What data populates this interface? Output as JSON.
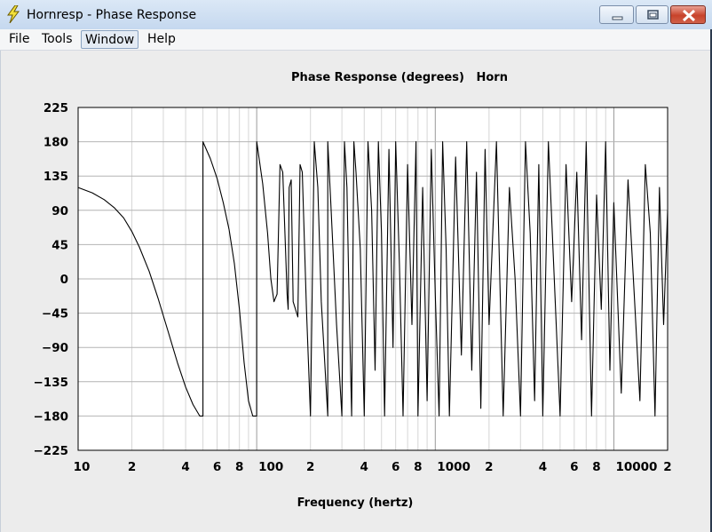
{
  "window": {
    "title": "Hornresp - Phase Response",
    "icon": "lightning-bolt-icon"
  },
  "window_controls": {
    "minimize_icon": "minimize-icon",
    "maximize_icon": "maximize-icon",
    "close_icon": "close-icon"
  },
  "menu": {
    "items": [
      {
        "label": "File"
      },
      {
        "label": "Tools"
      },
      {
        "label": "Window",
        "active": true
      },
      {
        "label": "Help"
      }
    ]
  },
  "chart_data": {
    "type": "line",
    "title": "Phase Response (degrees)   Horn",
    "xlabel": "Frequency (hertz)",
    "ylabel": "",
    "xscale": "log",
    "xlim": [
      10,
      20000
    ],
    "ylim": [
      -225,
      225
    ],
    "grid": true,
    "y_ticks": [
      "225",
      "180",
      "135",
      "90",
      "45",
      "0",
      "−45",
      "−90",
      "−135",
      "−180",
      "−225"
    ],
    "x_tick_labels": [
      {
        "f": 10,
        "label": "10"
      },
      {
        "f": 20,
        "label": "2"
      },
      {
        "f": 40,
        "label": "4"
      },
      {
        "f": 60,
        "label": "6"
      },
      {
        "f": 80,
        "label": "8"
      },
      {
        "f": 100,
        "label": "100"
      },
      {
        "f": 200,
        "label": "2"
      },
      {
        "f": 400,
        "label": "4"
      },
      {
        "f": 600,
        "label": "6"
      },
      {
        "f": 800,
        "label": "8"
      },
      {
        "f": 1000,
        "label": "1000"
      },
      {
        "f": 2000,
        "label": "2"
      },
      {
        "f": 4000,
        "label": "4"
      },
      {
        "f": 6000,
        "label": "6"
      },
      {
        "f": 8000,
        "label": "8"
      },
      {
        "f": 10000,
        "label": "10000"
      },
      {
        "f": 20000,
        "label": "2"
      }
    ],
    "series": [
      {
        "x": [
          10,
          12,
          14,
          16,
          18,
          20,
          22,
          25,
          28,
          32,
          36,
          40,
          44,
          48,
          50,
          50.01,
          55,
          60,
          65,
          70,
          75,
          80,
          85,
          90,
          95,
          100,
          100.01,
          108,
          115,
          120,
          125,
          130,
          135,
          140,
          148,
          150,
          152,
          156,
          160,
          170,
          175,
          180,
          190,
          200,
          210,
          220,
          230,
          250,
          250.01,
          260,
          280,
          300,
          310,
          320,
          330,
          340,
          350,
          360,
          380,
          400,
          420,
          440,
          460,
          480,
          500,
          520,
          550,
          580,
          600,
          630,
          660,
          700,
          740,
          780,
          800,
          850,
          900,
          950,
          1000,
          1050,
          1100,
          1150,
          1200,
          1300,
          1400,
          1500,
          1600,
          1700,
          1800,
          1900,
          2000,
          2200,
          2400,
          2600,
          2800,
          3000,
          3200,
          3400,
          3600,
          3800,
          4000,
          4300,
          4600,
          5000,
          5400,
          5800,
          6200,
          6600,
          7000,
          7500,
          8000,
          8500,
          9000,
          9500,
          10000,
          11000,
          12000,
          13000,
          14000,
          15000,
          16000,
          17000,
          18000,
          19000,
          20000
        ],
        "y": [
          120,
          113,
          104,
          93,
          80,
          62,
          42,
          10,
          -25,
          -70,
          -110,
          -142,
          -165,
          -180,
          -180,
          180,
          158,
          132,
          100,
          65,
          20,
          -40,
          -110,
          -160,
          -180,
          -180,
          180,
          125,
          60,
          0,
          -30,
          -20,
          150,
          140,
          -20,
          -40,
          120,
          130,
          -30,
          -50,
          150,
          140,
          -40,
          -180,
          180,
          120,
          -30,
          -180,
          180,
          100,
          -60,
          -180,
          180,
          120,
          -40,
          -180,
          180,
          140,
          40,
          -180,
          180,
          90,
          -120,
          180,
          60,
          -180,
          170,
          -90,
          180,
          20,
          -180,
          150,
          -60,
          180,
          -180,
          120,
          -160,
          170,
          -20,
          -180,
          180,
          40,
          -180,
          160,
          -100,
          180,
          -120,
          140,
          -170,
          170,
          -60,
          180,
          -180,
          120,
          0,
          -180,
          180,
          60,
          -160,
          150,
          -180,
          180,
          20,
          -180,
          150,
          -30,
          140,
          -80,
          180,
          -180,
          110,
          -40,
          180,
          -120,
          100,
          -150,
          130,
          -20,
          -160,
          150,
          60,
          -180,
          120,
          -60,
          90
        ]
      }
    ]
  }
}
